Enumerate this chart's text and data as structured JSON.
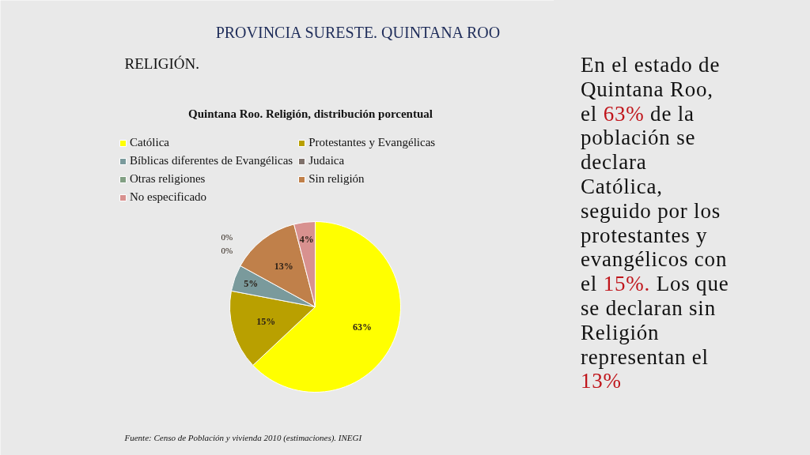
{
  "chart_data": {
    "type": "pie",
    "title": "Quintana Roo. Religión, distribución porcentual",
    "categories": [
      "Católica",
      "Protestantes y Evangélicas",
      "Bíblicas diferentes de Evangélicas",
      "Judaica",
      "Otras religiones",
      "Sin religión",
      "No especificado"
    ],
    "values": [
      63,
      15,
      5,
      0,
      0,
      13,
      4
    ],
    "colors": [
      "#ffff00",
      "#b9a000",
      "#7a9a9c",
      "#7f716b",
      "#82a084",
      "#c0804a",
      "#d8918f"
    ],
    "value_labels": [
      "63%",
      "15%",
      "5%",
      "0%",
      "0%",
      "13%",
      "4%"
    ],
    "legend": "top",
    "annotations": [
      "PROVINCIA SURESTE. QUINTANA ROO",
      "RELIGIÓN.",
      "En el estado de Quintana Roo, el 63% de la población se declara Católica, seguido por los protestantes y evangélicos con el 15%. Los que se declaran sin Religión representan el 13%",
      "Fuente: Censo de Población y vivienda 2010 (estimaciones). INEGI"
    ]
  }
}
